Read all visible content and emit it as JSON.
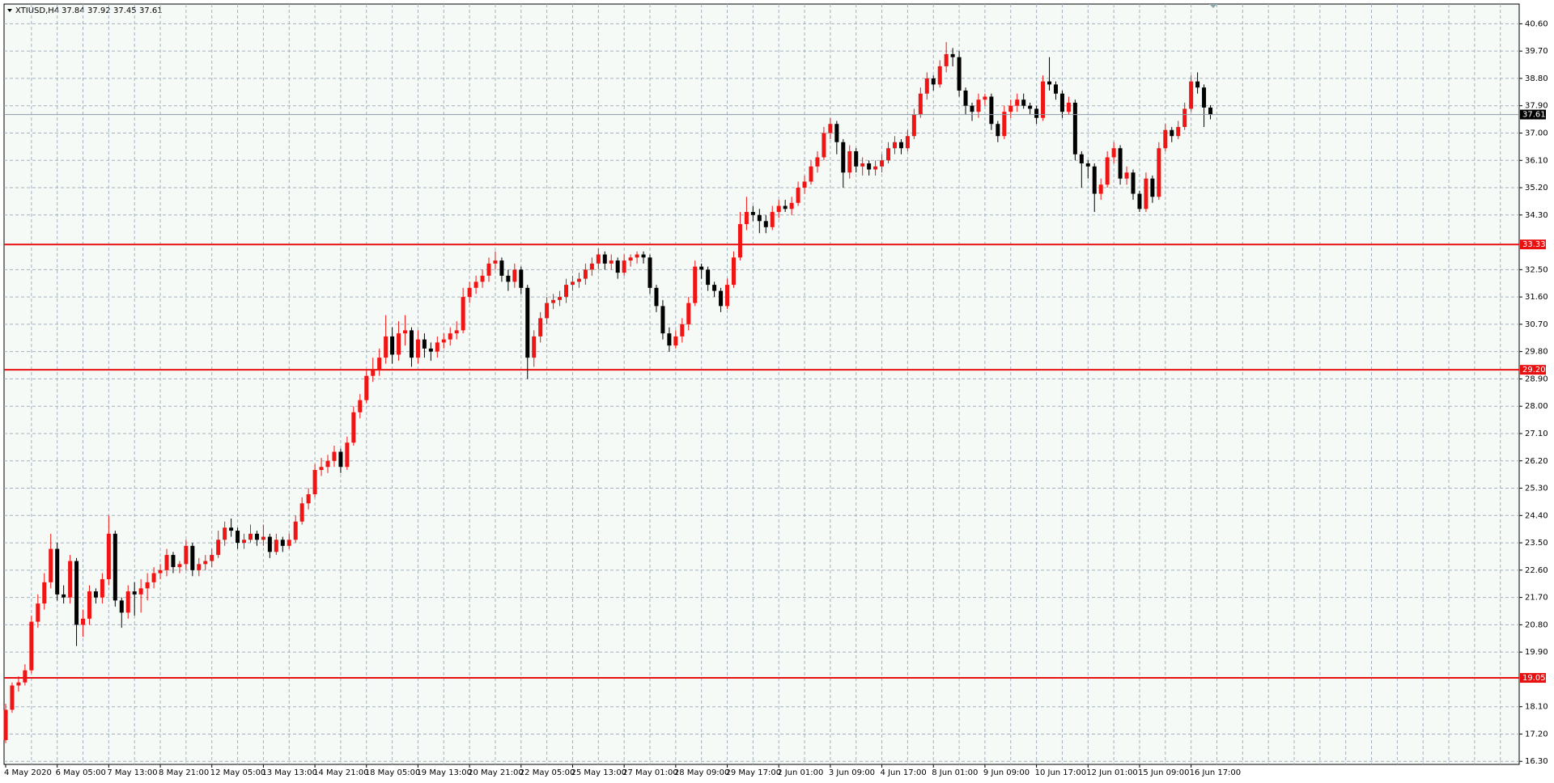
{
  "chart_data": {
    "type": "candlestick",
    "title": "XTIUSD,H4",
    "up_color": "#f01414",
    "down_color": "#000000",
    "level_color": "#e81010",
    "grid": true,
    "ylim": [
      16.2,
      41.25
    ],
    "yticks": [
      {
        "value": 16.3,
        "label": "16.30"
      },
      {
        "value": 17.2,
        "label": "17.20"
      },
      {
        "value": 18.1,
        "label": "18.10"
      },
      {
        "value": 19.9,
        "label": "19.90"
      },
      {
        "value": 20.8,
        "label": "20.80"
      },
      {
        "value": 21.7,
        "label": "21.70"
      },
      {
        "value": 22.6,
        "label": "22.60"
      },
      {
        "value": 23.5,
        "label": "23.50"
      },
      {
        "value": 24.4,
        "label": "24.40"
      },
      {
        "value": 25.3,
        "label": "25.30"
      },
      {
        "value": 26.2,
        "label": "26.20"
      },
      {
        "value": 27.1,
        "label": "27.10"
      },
      {
        "value": 28,
        "label": "28.00"
      },
      {
        "value": 28.9,
        "label": "28.90"
      },
      {
        "value": 29.8,
        "label": "29.80"
      },
      {
        "value": 30.7,
        "label": "30.70"
      },
      {
        "value": 31.6,
        "label": "31.60"
      },
      {
        "value": 32.5,
        "label": "32.50"
      },
      {
        "value": 34.3,
        "label": "34.30"
      },
      {
        "value": 35.2,
        "label": "35.20"
      },
      {
        "value": 36.1,
        "label": "36.10"
      },
      {
        "value": 37,
        "label": "37.00"
      },
      {
        "value": 37.9,
        "label": "37.90"
      },
      {
        "value": 38.8,
        "label": "38.80"
      },
      {
        "value": 39.7,
        "label": "39.70"
      },
      {
        "value": 40.6,
        "label": "40.60"
      }
    ],
    "xticks": [
      {
        "value": 0,
        "label": "4 May 2020"
      },
      {
        "value": 8,
        "label": "6 May 05:00"
      },
      {
        "value": 16,
        "label": "7 May 13:00"
      },
      {
        "value": 24,
        "label": "8 May 21:00"
      },
      {
        "value": 32,
        "label": "12 May 05:00"
      },
      {
        "value": 40,
        "label": "13 May 13:00"
      },
      {
        "value": 48,
        "label": "14 May 21:00"
      },
      {
        "value": 56,
        "label": "18 May 05:00"
      },
      {
        "value": 64,
        "label": "19 May 13:00"
      },
      {
        "value": 72,
        "label": "20 May 21:00"
      },
      {
        "value": 80,
        "label": "22 May 05:00"
      },
      {
        "value": 88,
        "label": "25 May 13:00"
      },
      {
        "value": 96,
        "label": "27 May 01:00"
      },
      {
        "value": 104,
        "label": "28 May 09:00"
      },
      {
        "value": 112,
        "label": "29 May 17:00"
      },
      {
        "value": 120,
        "label": "2 Jun 01:00"
      },
      {
        "value": 128,
        "label": "3 Jun 09:00"
      },
      {
        "value": 136,
        "label": "4 Jun 17:00"
      },
      {
        "value": 144,
        "label": "8 Jun 01:00"
      },
      {
        "value": 152,
        "label": "9 Jun 09:00"
      },
      {
        "value": 160,
        "label": "10 Jun 17:00"
      },
      {
        "value": 168,
        "label": "12 Jun 01:00"
      },
      {
        "value": 176,
        "label": "15 Jun 09:00"
      },
      {
        "value": 184,
        "label": "16 Jun 17:00"
      }
    ],
    "levels": [
      33.33,
      {
        "value": 29.2,
        "label": "29.20"
      },
      19.05
    ],
    "ohlc": [
      [
        17.0,
        18.2,
        16.9,
        18.0
      ],
      [
        18.0,
        18.9,
        17.9,
        18.8
      ],
      [
        18.8,
        19.1,
        18.6,
        18.9
      ],
      [
        18.9,
        19.5,
        18.8,
        19.3
      ],
      [
        19.3,
        21.1,
        19.2,
        20.9
      ],
      [
        20.9,
        21.8,
        20.7,
        21.5
      ],
      [
        21.5,
        22.5,
        21.3,
        22.2
      ],
      [
        22.2,
        23.8,
        22.0,
        23.3
      ],
      [
        23.3,
        23.5,
        21.6,
        21.8
      ],
      [
        21.8,
        22.1,
        21.5,
        21.7
      ],
      [
        21.7,
        23.1,
        21.5,
        22.9
      ],
      [
        22.9,
        23.0,
        20.1,
        20.8
      ],
      [
        20.8,
        21.3,
        20.4,
        21.0
      ],
      [
        21.0,
        22.1,
        20.8,
        21.9
      ],
      [
        21.9,
        22.0,
        21.5,
        21.7
      ],
      [
        21.7,
        22.5,
        21.5,
        22.3
      ],
      [
        22.3,
        24.4,
        22.1,
        23.8
      ],
      [
        23.8,
        23.9,
        21.4,
        21.6
      ],
      [
        21.6,
        21.7,
        20.7,
        21.2
      ],
      [
        21.2,
        22.1,
        21.0,
        21.9
      ],
      [
        21.9,
        22.2,
        21.1,
        21.8
      ],
      [
        21.8,
        22.3,
        21.2,
        22.0
      ],
      [
        22.0,
        22.5,
        21.6,
        22.2
      ],
      [
        22.2,
        22.7,
        22.0,
        22.5
      ],
      [
        22.5,
        22.8,
        22.3,
        22.6
      ],
      [
        22.6,
        23.3,
        22.4,
        23.1
      ],
      [
        23.1,
        23.2,
        22.5,
        22.7
      ],
      [
        22.7,
        22.9,
        22.5,
        22.8
      ],
      [
        22.8,
        23.6,
        22.6,
        23.4
      ],
      [
        23.4,
        23.5,
        22.4,
        22.6
      ],
      [
        22.6,
        23.0,
        22.4,
        22.8
      ],
      [
        22.8,
        23.1,
        22.6,
        22.9
      ],
      [
        22.9,
        23.3,
        22.7,
        23.1
      ],
      [
        23.1,
        23.9,
        23.0,
        23.6
      ],
      [
        23.6,
        24.2,
        23.4,
        24.0
      ],
      [
        24.0,
        24.3,
        23.7,
        23.9
      ],
      [
        23.9,
        24.0,
        23.3,
        23.5
      ],
      [
        23.5,
        23.8,
        23.3,
        23.6
      ],
      [
        23.6,
        24.1,
        23.5,
        23.8
      ],
      [
        23.8,
        23.9,
        23.4,
        23.6
      ],
      [
        23.6,
        24.1,
        23.4,
        23.7
      ],
      [
        23.7,
        23.8,
        23.0,
        23.2
      ],
      [
        23.2,
        23.8,
        23.1,
        23.6
      ],
      [
        23.6,
        23.7,
        23.2,
        23.4
      ],
      [
        23.4,
        23.8,
        23.3,
        23.6
      ],
      [
        23.6,
        24.4,
        23.5,
        24.2
      ],
      [
        24.2,
        25.0,
        24.1,
        24.8
      ],
      [
        24.8,
        25.3,
        24.6,
        25.1
      ],
      [
        25.1,
        26.1,
        25.0,
        25.9
      ],
      [
        25.9,
        26.3,
        25.7,
        26.0
      ],
      [
        26.0,
        26.4,
        25.8,
        26.2
      ],
      [
        26.2,
        26.7,
        26.0,
        26.5
      ],
      [
        26.5,
        26.6,
        25.8,
        26.0
      ],
      [
        26.0,
        27.0,
        25.9,
        26.8
      ],
      [
        26.8,
        28.0,
        26.7,
        27.8
      ],
      [
        27.8,
        28.4,
        27.6,
        28.2
      ],
      [
        28.2,
        29.2,
        28.1,
        29.0
      ],
      [
        29.0,
        29.6,
        28.8,
        29.2
      ],
      [
        29.2,
        29.9,
        29.0,
        29.6
      ],
      [
        29.6,
        31.0,
        29.4,
        30.3
      ],
      [
        30.3,
        30.6,
        29.4,
        29.7
      ],
      [
        29.7,
        30.8,
        29.5,
        30.4
      ],
      [
        30.4,
        31.0,
        30.0,
        30.5
      ],
      [
        30.5,
        30.6,
        29.3,
        29.6
      ],
      [
        29.6,
        30.5,
        29.4,
        30.2
      ],
      [
        30.2,
        30.4,
        29.6,
        29.9
      ],
      [
        29.9,
        30.1,
        29.5,
        29.8
      ],
      [
        29.8,
        30.3,
        29.6,
        30.1
      ],
      [
        30.1,
        30.4,
        29.9,
        30.2
      ],
      [
        30.2,
        30.6,
        30.0,
        30.4
      ],
      [
        30.4,
        30.8,
        30.2,
        30.5
      ],
      [
        30.5,
        31.9,
        30.4,
        31.6
      ],
      [
        31.6,
        32.1,
        31.4,
        31.9
      ],
      [
        31.9,
        32.3,
        31.7,
        32.1
      ],
      [
        32.1,
        32.5,
        31.9,
        32.3
      ],
      [
        32.3,
        32.9,
        32.1,
        32.7
      ],
      [
        32.7,
        33.1,
        32.5,
        32.8
      ],
      [
        32.8,
        32.9,
        32.1,
        32.3
      ],
      [
        32.3,
        32.5,
        31.8,
        32.1
      ],
      [
        32.1,
        32.7,
        31.9,
        32.5
      ],
      [
        32.5,
        32.6,
        31.7,
        31.9
      ],
      [
        31.9,
        32.0,
        28.9,
        29.6
      ],
      [
        29.6,
        30.5,
        29.3,
        30.3
      ],
      [
        30.3,
        31.1,
        30.1,
        30.9
      ],
      [
        30.9,
        31.6,
        30.7,
        31.4
      ],
      [
        31.4,
        31.7,
        31.2,
        31.5
      ],
      [
        31.5,
        31.8,
        31.3,
        31.6
      ],
      [
        31.6,
        32.2,
        31.4,
        32.0
      ],
      [
        32.0,
        32.3,
        31.8,
        32.1
      ],
      [
        32.1,
        32.4,
        31.9,
        32.2
      ],
      [
        32.2,
        32.7,
        32.0,
        32.5
      ],
      [
        32.5,
        32.9,
        32.3,
        32.7
      ],
      [
        32.7,
        33.2,
        32.5,
        33.0
      ],
      [
        33.0,
        33.1,
        32.5,
        32.7
      ],
      [
        32.7,
        33.0,
        32.5,
        32.8
      ],
      [
        32.8,
        32.9,
        32.2,
        32.4
      ],
      [
        32.4,
        33.0,
        32.3,
        32.8
      ],
      [
        32.8,
        33.0,
        32.6,
        32.9
      ],
      [
        32.9,
        33.1,
        32.7,
        33.0
      ],
      [
        33.0,
        33.1,
        32.7,
        32.9
      ],
      [
        32.9,
        33.0,
        31.7,
        31.9
      ],
      [
        31.9,
        32.0,
        31.1,
        31.3
      ],
      [
        31.3,
        31.5,
        30.2,
        30.4
      ],
      [
        30.4,
        30.6,
        29.8,
        30.0
      ],
      [
        30.0,
        30.5,
        29.9,
        30.3
      ],
      [
        30.3,
        30.9,
        30.1,
        30.7
      ],
      [
        30.7,
        31.6,
        30.5,
        31.4
      ],
      [
        31.4,
        32.8,
        31.3,
        32.6
      ],
      [
        32.6,
        32.7,
        32.2,
        32.5
      ],
      [
        32.5,
        32.6,
        31.8,
        32.0
      ],
      [
        32.0,
        32.1,
        31.6,
        31.8
      ],
      [
        31.8,
        31.9,
        31.1,
        31.3
      ],
      [
        31.3,
        32.2,
        31.2,
        32.0
      ],
      [
        32.0,
        33.1,
        31.9,
        32.9
      ],
      [
        32.9,
        34.4,
        32.8,
        34.0
      ],
      [
        34.0,
        34.9,
        33.8,
        34.4
      ],
      [
        34.4,
        34.6,
        34.1,
        34.3
      ],
      [
        34.3,
        34.5,
        33.7,
        34.1
      ],
      [
        34.1,
        34.3,
        33.7,
        33.9
      ],
      [
        33.9,
        34.6,
        33.8,
        34.4
      ],
      [
        34.4,
        34.8,
        34.2,
        34.6
      ],
      [
        34.6,
        34.8,
        34.4,
        34.5
      ],
      [
        34.5,
        34.9,
        34.3,
        34.7
      ],
      [
        34.7,
        35.4,
        34.6,
        35.2
      ],
      [
        35.2,
        35.6,
        35.0,
        35.4
      ],
      [
        35.4,
        36.1,
        35.3,
        35.9
      ],
      [
        35.9,
        36.4,
        35.7,
        36.2
      ],
      [
        36.2,
        37.2,
        36.1,
        37.0
      ],
      [
        37.0,
        37.5,
        36.8,
        37.3
      ],
      [
        37.3,
        37.4,
        36.3,
        36.7
      ],
      [
        36.7,
        36.8,
        35.2,
        35.7
      ],
      [
        35.7,
        36.6,
        35.5,
        36.4
      ],
      [
        36.4,
        36.5,
        35.7,
        35.9
      ],
      [
        35.9,
        36.2,
        35.6,
        36.0
      ],
      [
        36.0,
        36.1,
        35.6,
        35.8
      ],
      [
        35.8,
        36.1,
        35.6,
        35.9
      ],
      [
        35.9,
        36.3,
        35.7,
        36.1
      ],
      [
        36.1,
        36.7,
        36.0,
        36.5
      ],
      [
        36.5,
        36.9,
        36.3,
        36.7
      ],
      [
        36.7,
        36.8,
        36.3,
        36.5
      ],
      [
        36.5,
        37.1,
        36.4,
        36.9
      ],
      [
        36.9,
        37.8,
        36.8,
        37.6
      ],
      [
        37.6,
        38.5,
        37.5,
        38.3
      ],
      [
        38.3,
        39.0,
        38.1,
        38.8
      ],
      [
        38.8,
        38.9,
        38.4,
        38.6
      ],
      [
        38.6,
        39.4,
        38.5,
        39.2
      ],
      [
        39.2,
        40.0,
        39.0,
        39.6
      ],
      [
        39.6,
        39.8,
        39.2,
        39.5
      ],
      [
        39.5,
        39.7,
        38.2,
        38.4
      ],
      [
        38.4,
        38.5,
        37.6,
        37.9
      ],
      [
        37.9,
        38.0,
        37.4,
        37.7
      ],
      [
        37.7,
        38.3,
        37.5,
        38.1
      ],
      [
        38.1,
        38.3,
        37.9,
        38.2
      ],
      [
        38.2,
        38.3,
        37.1,
        37.3
      ],
      [
        37.3,
        37.4,
        36.7,
        36.9
      ],
      [
        36.9,
        37.9,
        36.8,
        37.7
      ],
      [
        37.7,
        38.1,
        37.5,
        37.9
      ],
      [
        37.9,
        38.3,
        37.7,
        38.1
      ],
      [
        38.1,
        38.3,
        37.8,
        37.9
      ],
      [
        37.9,
        38.0,
        37.6,
        37.8
      ],
      [
        37.8,
        37.9,
        37.3,
        37.5
      ],
      [
        37.5,
        38.9,
        37.4,
        38.7
      ],
      [
        38.7,
        39.5,
        38.4,
        38.6
      ],
      [
        38.6,
        38.7,
        38.1,
        38.3
      ],
      [
        38.3,
        38.4,
        37.5,
        37.7
      ],
      [
        37.7,
        38.2,
        37.6,
        38.0
      ],
      [
        38.0,
        38.1,
        36.1,
        36.3
      ],
      [
        36.3,
        36.4,
        35.2,
        36.0
      ],
      [
        36.0,
        36.1,
        35.5,
        35.9
      ],
      [
        35.9,
        36.0,
        34.4,
        35.0
      ],
      [
        35.0,
        35.5,
        34.8,
        35.3
      ],
      [
        35.3,
        36.4,
        35.2,
        36.2
      ],
      [
        36.2,
        36.7,
        36.0,
        36.5
      ],
      [
        36.5,
        36.6,
        35.3,
        35.5
      ],
      [
        35.5,
        35.9,
        35.3,
        35.7
      ],
      [
        35.7,
        35.8,
        34.8,
        35.0
      ],
      [
        35.0,
        35.1,
        34.4,
        34.5
      ],
      [
        34.5,
        35.7,
        34.4,
        35.5
      ],
      [
        35.5,
        35.6,
        34.7,
        34.9
      ],
      [
        34.9,
        36.7,
        34.8,
        36.5
      ],
      [
        36.5,
        37.3,
        36.4,
        37.1
      ],
      [
        37.1,
        37.2,
        36.7,
        36.9
      ],
      [
        36.9,
        37.4,
        36.8,
        37.2
      ],
      [
        37.2,
        38.0,
        37.1,
        37.8
      ],
      [
        37.8,
        38.9,
        37.7,
        38.7
      ],
      [
        38.7,
        39.0,
        38.3,
        38.5
      ],
      [
        38.5,
        38.6,
        37.2,
        37.84
      ],
      [
        37.84,
        37.92,
        37.45,
        37.61
      ]
    ]
  }
}
